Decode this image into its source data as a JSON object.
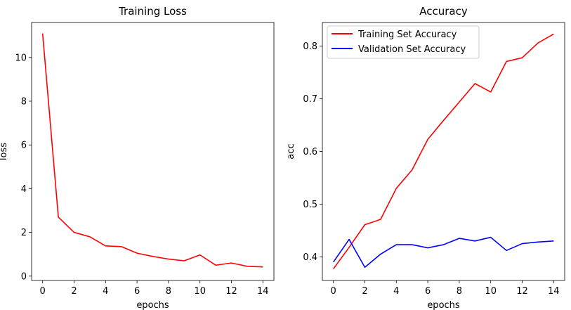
{
  "chart_data": [
    {
      "type": "line",
      "title": "Training Loss",
      "xlabel": "epochs",
      "ylabel": "loss",
      "xlim": [
        -0.7,
        14.7
      ],
      "ylim": [
        -0.2,
        11.6
      ],
      "xticks": [
        0,
        2,
        4,
        6,
        8,
        10,
        12,
        14
      ],
      "yticks": [
        0,
        2,
        4,
        6,
        8,
        10
      ],
      "grid": false,
      "series": [
        {
          "color": "#ff0000",
          "x": [
            0,
            1,
            2,
            3,
            4,
            5,
            6,
            7,
            8,
            9,
            10,
            11,
            12,
            13,
            14
          ],
          "y": [
            11.1,
            2.7,
            2.0,
            1.8,
            1.38,
            1.35,
            1.05,
            0.9,
            0.78,
            0.7,
            0.97,
            0.5,
            0.6,
            0.45,
            0.42
          ]
        }
      ]
    },
    {
      "type": "line",
      "title": "Accuracy",
      "xlabel": "epochs",
      "ylabel": "acc",
      "xlim": [
        -0.7,
        14.7
      ],
      "ylim": [
        0.355,
        0.845
      ],
      "xticks": [
        0,
        2,
        4,
        6,
        8,
        10,
        12,
        14
      ],
      "yticks": [
        0.4,
        0.5,
        0.6,
        0.7,
        0.8
      ],
      "grid": false,
      "legend": "top-left",
      "series": [
        {
          "name": "Training Set Accuracy",
          "color": "#ff0000",
          "x": [
            0,
            1,
            2,
            3,
            4,
            5,
            6,
            7,
            8,
            9,
            10,
            11,
            12,
            13,
            14
          ],
          "y": [
            0.377,
            0.418,
            0.461,
            0.471,
            0.53,
            0.565,
            0.623,
            0.659,
            0.694,
            0.729,
            0.713,
            0.771,
            0.778,
            0.806,
            0.823
          ]
        },
        {
          "name": "Validation Set Accuracy",
          "color": "#0000ff",
          "x": [
            0,
            1,
            2,
            3,
            4,
            5,
            6,
            7,
            8,
            9,
            10,
            11,
            12,
            13,
            14
          ],
          "y": [
            0.39,
            0.433,
            0.38,
            0.405,
            0.423,
            0.423,
            0.417,
            0.423,
            0.435,
            0.43,
            0.437,
            0.412,
            0.425,
            0.428,
            0.43
          ]
        }
      ]
    }
  ]
}
